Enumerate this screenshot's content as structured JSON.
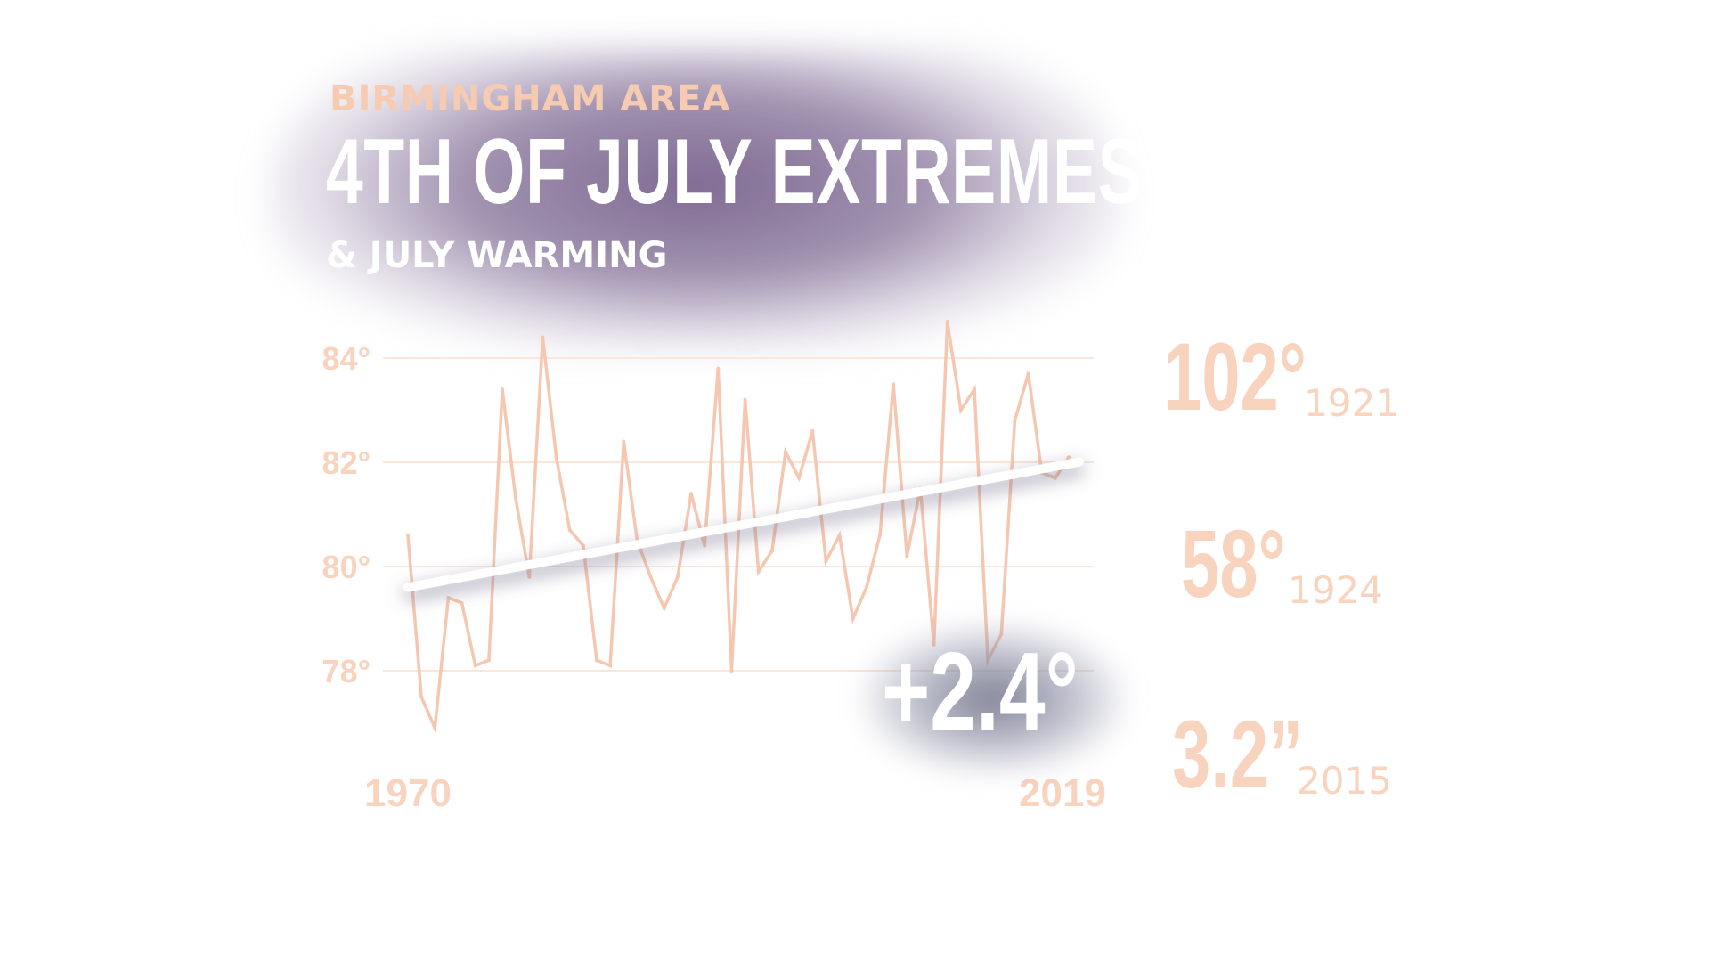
{
  "header": {
    "eyebrow": "BIRMINGHAM AREA",
    "title": "4TH OF JULY EXTREMES",
    "subtitle": "& JULY WARMING"
  },
  "stats": [
    {
      "value": "102°",
      "year": "1921"
    },
    {
      "value": "58°",
      "year": "1924"
    },
    {
      "value": "3.2”",
      "year": "2015"
    }
  ],
  "trend": {
    "label": "+2.4°"
  },
  "colors": {
    "series": "#f6c7b0",
    "grid": "#fbe6da",
    "labels": "#f8d3be",
    "trendline": "#ffffff",
    "title_glow": "#7e6790"
  },
  "chart_data": {
    "type": "line",
    "x_tick_labels": [
      "1970",
      "2019"
    ],
    "y_tick_labels": [
      "78°",
      "80°",
      "82°",
      "84°"
    ],
    "y_ticks": [
      78,
      80,
      82,
      84
    ],
    "ylim": [
      76.5,
      85
    ],
    "xlim": [
      1970,
      2019
    ],
    "grid": "horizontal",
    "series": [
      {
        "x": [
          1970,
          1971,
          1972,
          1973,
          1974,
          1975,
          1976,
          1977,
          1978,
          1979,
          1980,
          1981,
          1982,
          1983,
          1984,
          1985,
          1986,
          1987,
          1988,
          1989,
          1990,
          1991,
          1992,
          1993,
          1994,
          1995,
          1996,
          1997,
          1998,
          1999,
          2000,
          2001,
          2002,
          2003,
          2004,
          2005,
          2006,
          2007,
          2008,
          2009,
          2010,
          2011,
          2012,
          2013,
          2014,
          2015,
          2016,
          2017,
          2018,
          2019
        ],
        "values": [
          80.6,
          77.5,
          76.9,
          79.4,
          79.3,
          78.1,
          78.2,
          83.4,
          81.3,
          79.8,
          84.4,
          82.1,
          80.7,
          80.4,
          78.2,
          78.1,
          82.4,
          80.5,
          79.8,
          79.2,
          79.8,
          81.4,
          80.4,
          83.8,
          78.0,
          83.2,
          79.9,
          80.3,
          82.2,
          81.7,
          82.6,
          80.1,
          80.6,
          79.0,
          79.6,
          80.6,
          83.5,
          80.2,
          81.5,
          78.5,
          84.7,
          83.0,
          83.4,
          78.2,
          78.7,
          82.8,
          83.7,
          81.8,
          81.7,
          82.1
        ]
      },
      {
        "x": [
          1970,
          2019
        ],
        "values": [
          79.6,
          82.0
        ]
      }
    ]
  }
}
